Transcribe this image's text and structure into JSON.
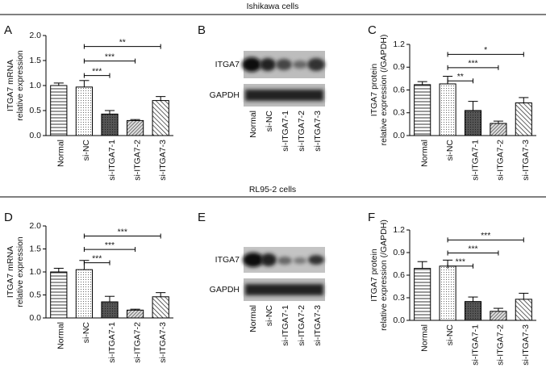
{
  "sections": [
    "Ishikawa cells",
    "RL95-2 cells"
  ],
  "chart_data": [
    {
      "type": "bar",
      "panel": "A",
      "ylabel": [
        "ITGA7 mRNA",
        "relative expression"
      ],
      "categories": [
        "Normal",
        "si-NC",
        "si-ITGA7-1",
        "si-ITGA7-2",
        "si-ITGA7-3"
      ],
      "values": [
        1.0,
        0.97,
        0.43,
        0.3,
        0.7
      ],
      "errors": [
        0.05,
        0.13,
        0.07,
        0.02,
        0.08
      ],
      "fills": [
        "hlines",
        "dots",
        "dark",
        "hatch",
        "hatch2"
      ],
      "ylim": [
        0,
        2.0
      ],
      "yticks": [
        {
          "value": 0,
          "label": "0.0"
        },
        {
          "value": 0.5,
          "label": "0.5"
        },
        {
          "value": 1.0,
          "label": "1.0"
        },
        {
          "value": 1.5,
          "label": "1.5"
        },
        {
          "value": 2.0,
          "label": "2.0"
        }
      ],
      "comparisons": [
        {
          "groups": [
            "si-NC",
            "si-ITGA7-1"
          ],
          "label": "***"
        },
        {
          "groups": [
            "si-NC",
            "si-ITGA7-2"
          ],
          "label": "***"
        },
        {
          "groups": [
            "si-NC",
            "si-ITGA7-3"
          ],
          "label": "**"
        }
      ]
    },
    {
      "type": "bar",
      "panel": "C",
      "ylabel": [
        "ITGA7 protein",
        "relative expression (/GAPDH)"
      ],
      "categories": [
        "Normal",
        "si-NC",
        "si-ITGA7-1",
        "si-ITGA7-2",
        "si-ITGA7-3"
      ],
      "values": [
        0.67,
        0.68,
        0.33,
        0.16,
        0.43
      ],
      "errors": [
        0.04,
        0.1,
        0.12,
        0.03,
        0.07
      ],
      "fills": [
        "hlines",
        "dots",
        "dark",
        "hatch",
        "hatch2"
      ],
      "ylim": [
        0,
        1.2
      ],
      "yticks": [
        {
          "value": 0,
          "label": "0.0"
        },
        {
          "value": 0.3,
          "label": "0.3"
        },
        {
          "value": 0.6,
          "label": "0.6"
        },
        {
          "value": 0.9,
          "label": "0.9"
        },
        {
          "value": 1.2,
          "label": "1.2"
        }
      ],
      "comparisons": [
        {
          "groups": [
            "si-NC",
            "si-ITGA7-1"
          ],
          "label": "**"
        },
        {
          "groups": [
            "si-NC",
            "si-ITGA7-2"
          ],
          "label": "***"
        },
        {
          "groups": [
            "si-NC",
            "si-ITGA7-3"
          ],
          "label": "*"
        }
      ]
    },
    {
      "type": "bar",
      "panel": "D",
      "ylabel": [
        "ITGA7 mRNA",
        "relative expression"
      ],
      "categories": [
        "Normal",
        "si-NC",
        "si-ITGA7-1",
        "si-ITGA7-2",
        "si-ITGA7-3"
      ],
      "values": [
        1.0,
        1.05,
        0.35,
        0.17,
        0.46
      ],
      "errors": [
        0.08,
        0.2,
        0.12,
        0.02,
        0.09
      ],
      "fills": [
        "hlines",
        "dots",
        "dark",
        "hatch",
        "hatch2"
      ],
      "ylim": [
        0,
        2.0
      ],
      "yticks": [
        {
          "value": 0,
          "label": "0.0"
        },
        {
          "value": 0.5,
          "label": "0.5"
        },
        {
          "value": 1.0,
          "label": "1.0"
        },
        {
          "value": 1.5,
          "label": "1.5"
        },
        {
          "value": 2.0,
          "label": "2.0"
        }
      ],
      "comparisons": [
        {
          "groups": [
            "si-NC",
            "si-ITGA7-1"
          ],
          "label": "***"
        },
        {
          "groups": [
            "si-NC",
            "si-ITGA7-2"
          ],
          "label": "***"
        },
        {
          "groups": [
            "si-NC",
            "si-ITGA7-3"
          ],
          "label": "***"
        }
      ]
    },
    {
      "type": "bar",
      "panel": "F",
      "ylabel": [
        "ITGA7 protein",
        "relative expression (/GAPDH)"
      ],
      "categories": [
        "Normal",
        "si-NC",
        "si-ITGA7-1",
        "si-ITGA7-2",
        "si-ITGA7-3"
      ],
      "values": [
        0.69,
        0.72,
        0.25,
        0.12,
        0.28
      ],
      "errors": [
        0.09,
        0.08,
        0.06,
        0.04,
        0.08
      ],
      "fills": [
        "hlines",
        "dots",
        "dark",
        "hatch",
        "hatch2"
      ],
      "ylim": [
        0,
        1.2
      ],
      "yticks": [
        {
          "value": 0,
          "label": "0.0"
        },
        {
          "value": 0.3,
          "label": "0.3"
        },
        {
          "value": 0.6,
          "label": "0.6"
        },
        {
          "value": 0.9,
          "label": "0.9"
        },
        {
          "value": 1.2,
          "label": "1.2"
        }
      ],
      "comparisons": [
        {
          "groups": [
            "si-NC",
            "si-ITGA7-1"
          ],
          "label": "***"
        },
        {
          "groups": [
            "si-NC",
            "si-ITGA7-2"
          ],
          "label": "***"
        },
        {
          "groups": [
            "si-NC",
            "si-ITGA7-3"
          ],
          "label": "***"
        }
      ]
    }
  ],
  "blots": [
    {
      "panel": "B",
      "rows": [
        "ITGA7",
        "GAPDH"
      ],
      "lanes": [
        "Normal",
        "si-NC",
        "si-ITGA7-1",
        "si-ITGA7-2",
        "si-ITGA7-3"
      ]
    },
    {
      "panel": "E",
      "rows": [
        "ITGA7",
        "GAPDH"
      ],
      "lanes": [
        "Normal",
        "si-NC",
        "si-ITGA7-1",
        "si-ITGA7-2",
        "si-ITGA7-3"
      ]
    }
  ]
}
